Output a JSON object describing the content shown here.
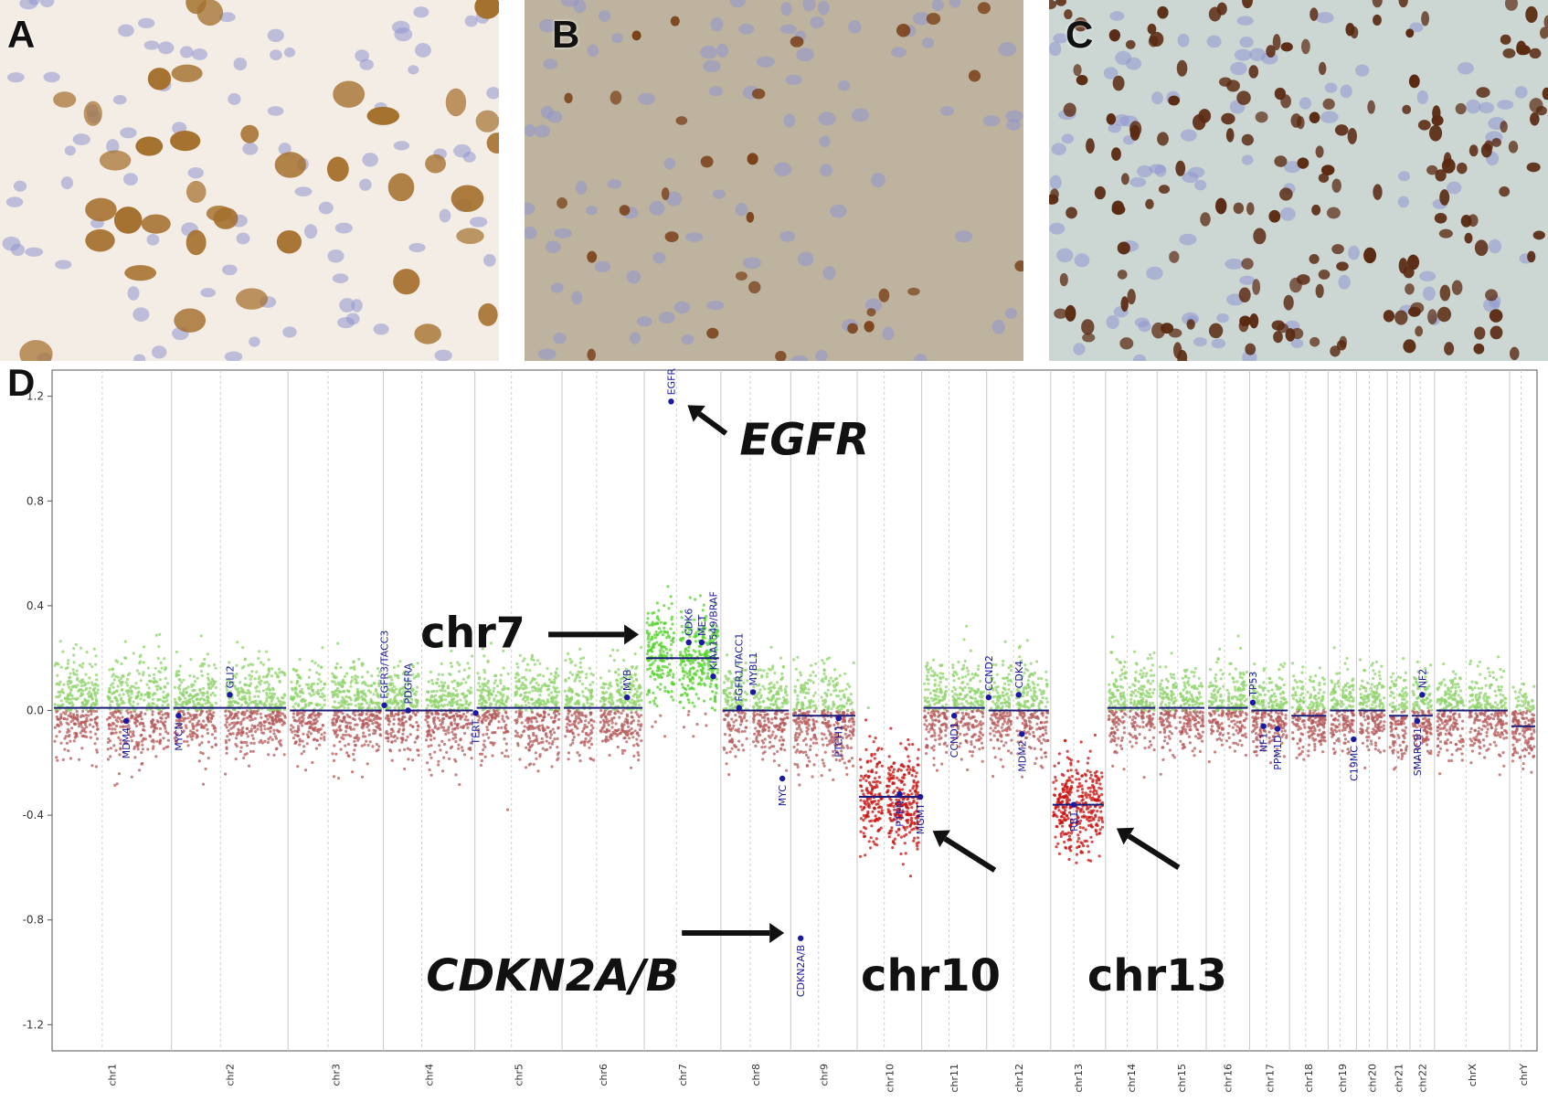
{
  "panels": {
    "a": {
      "letter": "A",
      "stain": "#a5702e",
      "background": "#f3ede6"
    },
    "b": {
      "letter": "B",
      "stain": "#7a4018",
      "background": "#bdb39e"
    },
    "c": {
      "letter": "C",
      "stain": "#5a2a12",
      "background": "#ccd7d4"
    },
    "d": {
      "letter": "D"
    }
  },
  "chart_data": {
    "type": "scatter",
    "ylim": [
      -1.3,
      1.3
    ],
    "yticks": [
      -1.2,
      -0.8,
      -0.4,
      0.0,
      0.4,
      0.8,
      1.2
    ],
    "ytick_labels": [
      "-1.2",
      "-0.8",
      "-0.4",
      "0.0",
      "0.4",
      "0.8",
      "1.2"
    ],
    "grid": false,
    "colors": {
      "gain": "#8fd36b",
      "gain_strong": "#55d12e",
      "loss": "#b55a5a",
      "loss_strong": "#c8100f",
      "segment": "#1c1c7a",
      "gene": "#1a1aa0"
    },
    "chromosomes": [
      {
        "name": "chr1",
        "size": 248,
        "level": 0.01,
        "spread": 0.09
      },
      {
        "name": "chr2",
        "size": 242,
        "level": 0.01,
        "spread": 0.09
      },
      {
        "name": "chr3",
        "size": 198,
        "level": 0.0,
        "spread": 0.09
      },
      {
        "name": "chr4",
        "size": 190,
        "level": 0.0,
        "spread": 0.09
      },
      {
        "name": "chr5",
        "size": 181,
        "level": 0.01,
        "spread": 0.09
      },
      {
        "name": "chr6",
        "size": 171,
        "level": 0.01,
        "spread": 0.09
      },
      {
        "name": "chr7",
        "size": 159,
        "level": 0.2,
        "spread": 0.1
      },
      {
        "name": "chr8",
        "size": 145,
        "level": 0.0,
        "spread": 0.09
      },
      {
        "name": "chr9",
        "size": 138,
        "level": -0.02,
        "spread": 0.1
      },
      {
        "name": "chr10",
        "size": 134,
        "level": -0.33,
        "spread": 0.11
      },
      {
        "name": "chr11",
        "size": 135,
        "level": 0.01,
        "spread": 0.09
      },
      {
        "name": "chr12",
        "size": 133,
        "level": 0.0,
        "spread": 0.09
      },
      {
        "name": "chr13",
        "size": 114,
        "level": -0.36,
        "spread": 0.1
      },
      {
        "name": "chr14",
        "size": 107,
        "level": 0.01,
        "spread": 0.08
      },
      {
        "name": "chr15",
        "size": 102,
        "level": 0.01,
        "spread": 0.08
      },
      {
        "name": "chr16",
        "size": 90,
        "level": 0.01,
        "spread": 0.08
      },
      {
        "name": "chr17",
        "size": 83,
        "level": 0.0,
        "spread": 0.08
      },
      {
        "name": "chr18",
        "size": 80,
        "level": -0.02,
        "spread": 0.08
      },
      {
        "name": "chr19",
        "size": 59,
        "level": 0.0,
        "spread": 0.08
      },
      {
        "name": "chr20",
        "size": 64,
        "level": 0.0,
        "spread": 0.08
      },
      {
        "name": "chr21",
        "size": 47,
        "level": -0.02,
        "spread": 0.08
      },
      {
        "name": "chr22",
        "size": 51,
        "level": -0.02,
        "spread": 0.08
      },
      {
        "name": "chrX",
        "size": 156,
        "level": 0.0,
        "spread": 0.08
      },
      {
        "name": "chrY",
        "size": 57,
        "level": -0.06,
        "spread": 0.07
      }
    ],
    "genes": [
      {
        "name": "MDM4",
        "chrom": "chr1",
        "pos": 0.62,
        "value": -0.04
      },
      {
        "name": "MYCN",
        "chrom": "chr2",
        "pos": 0.06,
        "value": -0.02
      },
      {
        "name": "GLI2",
        "chrom": "chr2",
        "pos": 0.5,
        "value": 0.06
      },
      {
        "name": "FGFR3/TACC3",
        "chrom": "chr4",
        "pos": 0.01,
        "value": 0.02
      },
      {
        "name": "PDGFRA",
        "chrom": "chr4",
        "pos": 0.27,
        "value": 0.0
      },
      {
        "name": "TERT",
        "chrom": "chr5",
        "pos": 0.01,
        "value": -0.01
      },
      {
        "name": "MYB",
        "chrom": "chr6",
        "pos": 0.79,
        "value": 0.05
      },
      {
        "name": "EGFR",
        "chrom": "chr7",
        "pos": 0.35,
        "value": 1.18
      },
      {
        "name": "CDK6",
        "chrom": "chr7",
        "pos": 0.58,
        "value": 0.26
      },
      {
        "name": "MET",
        "chrom": "chr7",
        "pos": 0.75,
        "value": 0.26
      },
      {
        "name": "KIAA1549/BRAF",
        "chrom": "chr7",
        "pos": 0.9,
        "value": 0.13
      },
      {
        "name": "FGFR1/TACC1",
        "chrom": "chr8",
        "pos": 0.26,
        "value": 0.01
      },
      {
        "name": "MYBL1",
        "chrom": "chr8",
        "pos": 0.46,
        "value": 0.07
      },
      {
        "name": "MYC",
        "chrom": "chr8",
        "pos": 0.88,
        "value": -0.26
      },
      {
        "name": "CDKN2A/B",
        "chrom": "chr9",
        "pos": 0.15,
        "value": -0.87
      },
      {
        "name": "PTCH1",
        "chrom": "chr9",
        "pos": 0.72,
        "value": -0.03
      },
      {
        "name": "PTEN",
        "chrom": "chr10",
        "pos": 0.66,
        "value": -0.32
      },
      {
        "name": "MGMT",
        "chrom": "chr10",
        "pos": 0.98,
        "value": -0.33
      },
      {
        "name": "CCND1",
        "chrom": "chr11",
        "pos": 0.5,
        "value": -0.02
      },
      {
        "name": "CCND2",
        "chrom": "chr12",
        "pos": 0.03,
        "value": 0.05
      },
      {
        "name": "CDK4",
        "chrom": "chr12",
        "pos": 0.5,
        "value": 0.06
      },
      {
        "name": "MDM2",
        "chrom": "chr12",
        "pos": 0.55,
        "value": -0.09
      },
      {
        "name": "RB1",
        "chrom": "chr13",
        "pos": 0.42,
        "value": -0.36
      },
      {
        "name": "TP53",
        "chrom": "chr17",
        "pos": 0.08,
        "value": 0.03
      },
      {
        "name": "NF1",
        "chrom": "chr17",
        "pos": 0.35,
        "value": -0.06
      },
      {
        "name": "PPM1D",
        "chrom": "chr17",
        "pos": 0.7,
        "value": -0.07
      },
      {
        "name": "C19MC",
        "chrom": "chr19",
        "pos": 0.9,
        "value": -0.11
      },
      {
        "name": "SMARCB1",
        "chrom": "chr22",
        "pos": 0.3,
        "value": -0.04
      },
      {
        "name": "NF2",
        "chrom": "chr22",
        "pos": 0.5,
        "value": 0.06
      }
    ],
    "annotations": [
      {
        "text": "EGFR",
        "style": "italic"
      },
      {
        "text": "chr7",
        "style": "normal"
      },
      {
        "text": "CDKN2A/B",
        "style": "italic"
      },
      {
        "text": "chr10",
        "style": "normal"
      },
      {
        "text": "chr13",
        "style": "normal"
      }
    ]
  }
}
